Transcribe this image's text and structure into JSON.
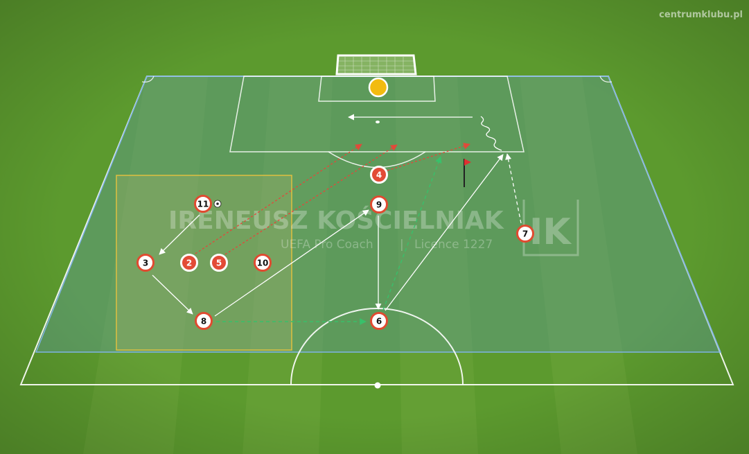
{
  "brand": {
    "site": "centrumklubu.pl"
  },
  "watermark": {
    "name": "IRENEUSZ KOŚCIELNIAK",
    "role": "UEFA Pro Coach",
    "separator": "|",
    "licence": "Licence 1227",
    "logo": "IK"
  },
  "colors": {
    "grass_dark": "#5a9a2c",
    "grass_light": "#6ba53a",
    "zone_fill": "#5f9a86",
    "zone_border": "#7fb3e6",
    "square_border": "#e0c040",
    "player_ring": "#e04a30",
    "player_red": "#e34b36",
    "pass": "#ffffff",
    "run_red": "#e04a3a",
    "run_green": "#39c06a",
    "keeper": "#f2bb10",
    "flag": "#e03030"
  },
  "players": [
    {
      "id": "p11",
      "label": "11",
      "style": "white"
    },
    {
      "id": "p3",
      "label": "3",
      "style": "white"
    },
    {
      "id": "p2",
      "label": "2",
      "style": "red"
    },
    {
      "id": "p5",
      "label": "5",
      "style": "red"
    },
    {
      "id": "p10",
      "label": "10",
      "style": "white"
    },
    {
      "id": "p8",
      "label": "8",
      "style": "white"
    },
    {
      "id": "p9",
      "label": "9",
      "style": "white"
    },
    {
      "id": "p4",
      "label": "4",
      "style": "red"
    },
    {
      "id": "p6",
      "label": "6",
      "style": "white"
    },
    {
      "id": "p7",
      "label": "7",
      "style": "white"
    }
  ],
  "icons": {
    "ball": "soccer-ball-icon",
    "flag": "corner-flag-icon",
    "keeper": "goalkeeper-icon"
  }
}
